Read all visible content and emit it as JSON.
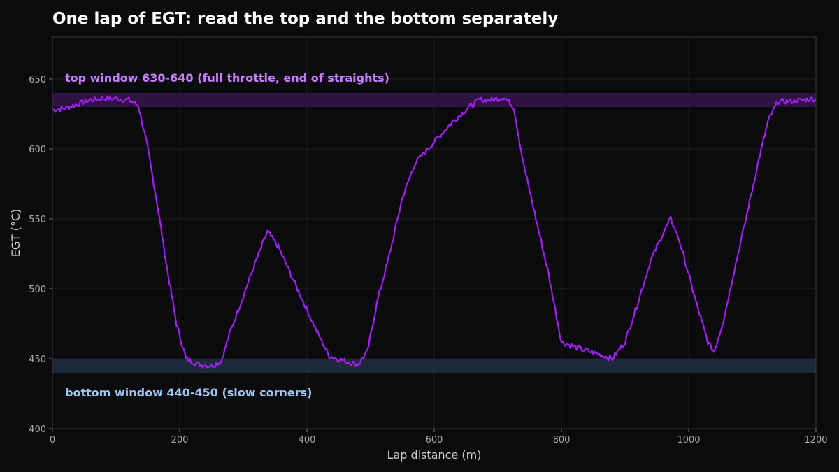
{
  "chart_data": {
    "type": "line",
    "title": "One lap of EGT: read the top and the bottom separately",
    "xlabel": "Lap distance (m)",
    "ylabel": "EGT (°C)",
    "xlim": [
      0,
      1200
    ],
    "ylim": [
      400,
      680
    ],
    "x_ticks": [
      "0",
      "200",
      "400",
      "600",
      "800",
      "1000",
      "1200"
    ],
    "x_tick_values": [
      0,
      200,
      400,
      600,
      800,
      1000,
      1200
    ],
    "y_ticks": [
      "400",
      "450",
      "500",
      "550",
      "600",
      "650"
    ],
    "y_tick_values": [
      400,
      450,
      500,
      550,
      600,
      650
    ],
    "grid": true,
    "bands": [
      {
        "label": "top window 630-640 (full throttle, end of straights)",
        "y0": 630,
        "y1": 640,
        "fill": "#2e1242",
        "text_color": "#c77dff"
      },
      {
        "label": "bottom window 440-450 (slow corners)",
        "y0": 440,
        "y1": 450,
        "fill": "#1e2a3a",
        "text_color": "#9ec5f0"
      }
    ],
    "series": [
      {
        "color": "#a020f0",
        "x": [
          0,
          20,
          40,
          60,
          80,
          100,
          120,
          135,
          150,
          165,
          180,
          195,
          210,
          230,
          250,
          265,
          280,
          300,
          320,
          338,
          355,
          375,
          395,
          415,
          435,
          455,
          480,
          495,
          510,
          530,
          550,
          570,
          590,
          610,
          630,
          650,
          670,
          690,
          710,
          725,
          740,
          760,
          780,
          800,
          830,
          860,
          880,
          900,
          920,
          940,
          960,
          972,
          985,
          1000,
          1015,
          1030,
          1040,
          1055,
          1070,
          1090,
          1110,
          1125,
          1140,
          1160,
          1180,
          1200
        ],
        "y": [
          628,
          629,
          632,
          635,
          636,
          636,
          635,
          631,
          600,
          560,
          515,
          475,
          450,
          446,
          445,
          448,
          470,
          495,
          520,
          541,
          530,
          510,
          490,
          470,
          452,
          449,
          446,
          455,
          490,
          525,
          565,
          590,
          600,
          610,
          620,
          628,
          635,
          635,
          637,
          630,
          590,
          550,
          510,
          462,
          457,
          453,
          450,
          462,
          490,
          520,
          540,
          550,
          535,
          510,
          485,
          462,
          455,
          478,
          510,
          550,
          592,
          620,
          634,
          634,
          635,
          636
        ]
      }
    ]
  }
}
